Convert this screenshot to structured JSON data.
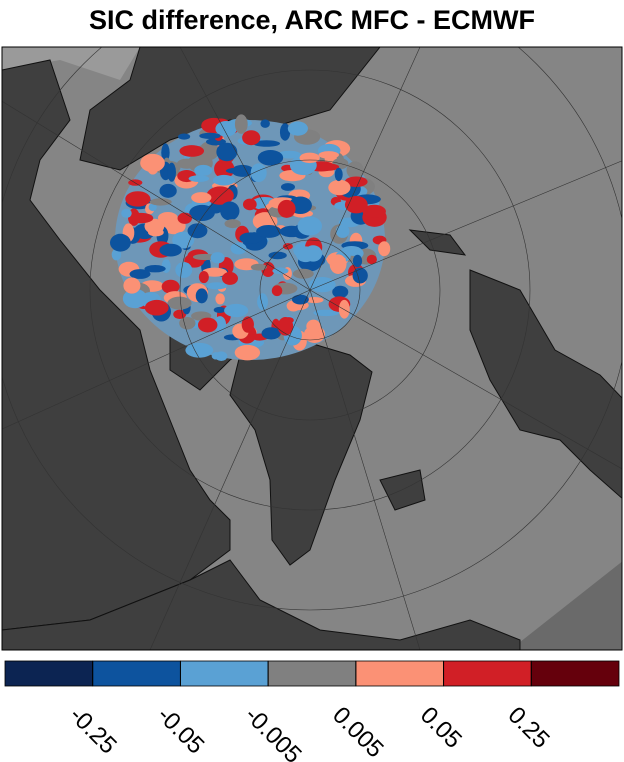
{
  "title": "SIC difference, ARC MFC - ECMWF",
  "colorbar": {
    "boundaries": [
      -0.25,
      -0.05,
      -0.005,
      0.005,
      0.05,
      0.25
    ],
    "colors": [
      "#0c2452",
      "#0d539e",
      "#5aa1d4",
      "#808080",
      "#fb9175",
      "#d11f26",
      "#65000c"
    ]
  }
}
